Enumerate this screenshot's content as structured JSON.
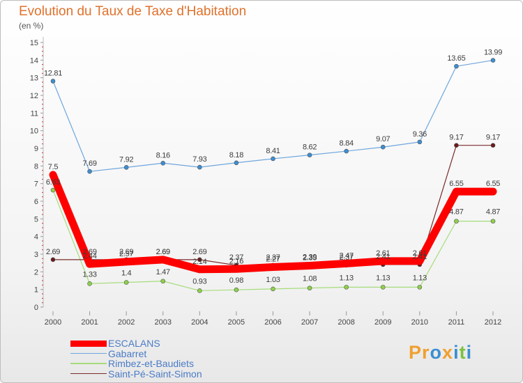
{
  "chart_data": {
    "type": "line",
    "title": "Evolution du Taux de Taxe d'Habitation",
    "subtitle": "(en %)",
    "xlabel": "",
    "ylabel": "(en %)",
    "ylim": [
      0,
      15
    ],
    "yticks": [
      "0",
      "1",
      "2",
      "3",
      "4",
      "5",
      "6",
      "7",
      "8",
      "9",
      "10",
      "11",
      "12",
      "13",
      "14",
      "15"
    ],
    "categories": [
      "2000",
      "2001",
      "2002",
      "2003",
      "2004",
      "2005",
      "2006",
      "2007",
      "2008",
      "2009",
      "2010",
      "2011",
      "2012"
    ],
    "legend_position": "bottom-left",
    "series": [
      {
        "name": "ESCALANS",
        "color": "#ff0000",
        "line_color": "#ff0000",
        "values": [
          7.5,
          2.44,
          2.57,
          2.69,
          2.14,
          2.16,
          2.27,
          2.35,
          2.47,
          2.61,
          2.61,
          6.55,
          6.55
        ],
        "labels": [
          "7.5",
          "2.44",
          "2.57",
          "2.69",
          "2.14",
          "2.16",
          "2.27",
          "2.35",
          "2.47",
          "2.61",
          "2.61",
          "6.55",
          "6.55"
        ]
      },
      {
        "name": "Gabarret",
        "color": "#3d8ed1",
        "line_color": "#6fa6dc",
        "values": [
          12.81,
          7.69,
          7.92,
          8.16,
          7.93,
          8.18,
          8.41,
          8.62,
          8.84,
          9.07,
          9.36,
          13.65,
          13.99
        ],
        "labels": [
          "12.81",
          "7.69",
          "7.92",
          "8.16",
          "7.93",
          "8.18",
          "8.41",
          "8.62",
          "8.84",
          "9.07",
          "9.36",
          "13.65",
          "13.99"
        ]
      },
      {
        "name": "Rimbez-et-Baudiets",
        "color": "#8fd14a",
        "line_color": "#a6dc7a",
        "values": [
          6.63,
          1.33,
          1.4,
          1.47,
          0.93,
          0.98,
          1.03,
          1.08,
          1.13,
          1.13,
          1.13,
          4.87,
          4.87
        ],
        "labels": [
          "6.63",
          "1.33",
          "1.4",
          "1.47",
          "0.93",
          "0.98",
          "1.03",
          "1.08",
          "1.13",
          "1.13",
          "1.13",
          "4.87",
          "4.87"
        ]
      },
      {
        "name": "Saint-Pé-Saint-Simon",
        "color": "#6b1a1a",
        "line_color": "#7a2a2a",
        "values": [
          2.69,
          2.69,
          2.69,
          2.69,
          2.69,
          2.37,
          2.37,
          2.39,
          2.37,
          2.41,
          2.41,
          9.17,
          9.17
        ],
        "labels": [
          "2.69",
          "2.69",
          "2.69",
          "2.69",
          "2.69",
          "2.37",
          "2.37",
          "2.39",
          "2.37",
          "2.41",
          "2.41",
          "9.17",
          "9.17"
        ]
      }
    ]
  },
  "brand": {
    "p1": "Pr",
    "p2": "o",
    "p3": "x",
    "p4": "i",
    "p5": "t",
    "p6": "i"
  }
}
